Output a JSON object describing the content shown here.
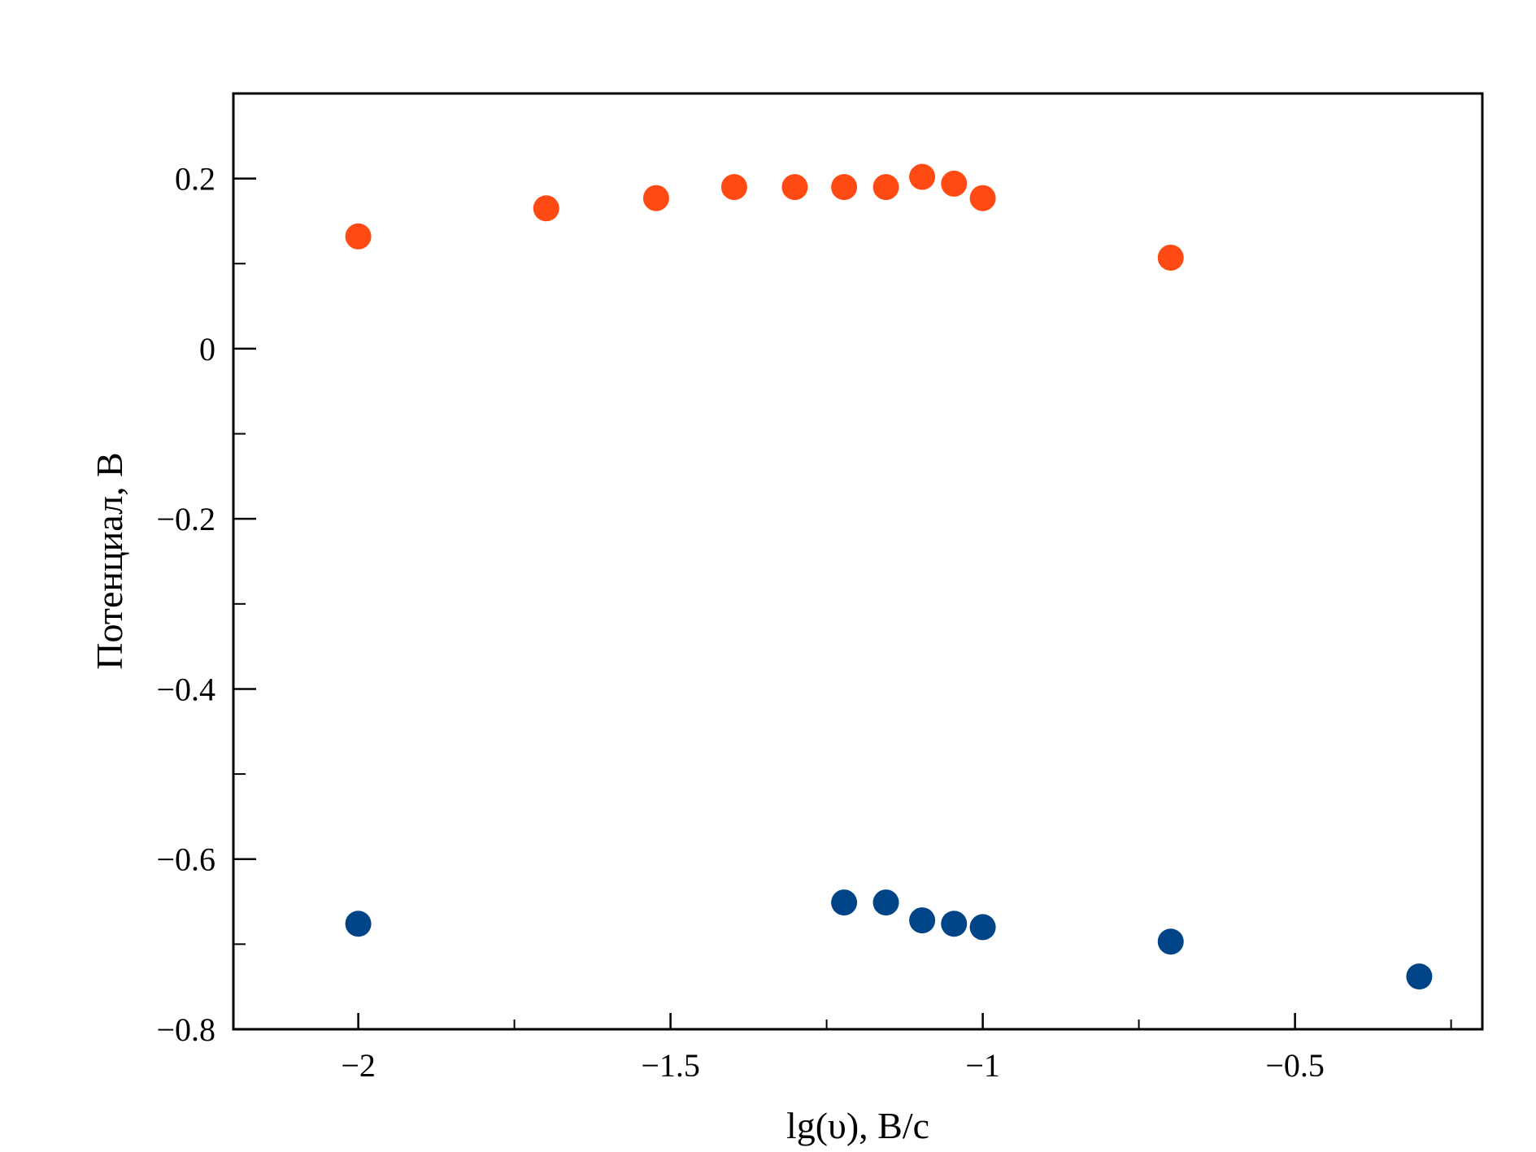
{
  "chart_data": {
    "type": "scatter",
    "title": "",
    "xlabel": "lg(υ), В/с",
    "ylabel": "Потенциал, В",
    "xlim": [
      -2.2,
      -0.2
    ],
    "ylim": [
      -0.8,
      0.3
    ],
    "grid": false,
    "legend": "none",
    "x_ticks": [
      -2,
      -1.5,
      -1,
      -0.5
    ],
    "x_tick_labels": [
      "−2",
      "−1.5",
      "−1",
      "−0.5"
    ],
    "x_minor_ticks": [
      -1.75,
      -1.25,
      -0.75,
      -0.25
    ],
    "y_ticks": [
      0.2,
      0,
      -0.2,
      -0.4,
      -0.6,
      -0.8
    ],
    "y_tick_labels": [
      "0.2",
      "0",
      "−0.2",
      "−0.4",
      "−0.6",
      "−0.8"
    ],
    "y_minor_ticks": [
      0.1,
      -0.1,
      -0.3,
      -0.5,
      -0.7
    ],
    "series": [
      {
        "color": "#ff4a14",
        "points": [
          {
            "x": -2.0,
            "y": 0.132
          },
          {
            "x": -1.699,
            "y": 0.165
          },
          {
            "x": -1.523,
            "y": 0.177
          },
          {
            "x": -1.398,
            "y": 0.19
          },
          {
            "x": -1.301,
            "y": 0.19
          },
          {
            "x": -1.222,
            "y": 0.19
          },
          {
            "x": -1.155,
            "y": 0.19
          },
          {
            "x": -1.097,
            "y": 0.202
          },
          {
            "x": -1.046,
            "y": 0.194
          },
          {
            "x": -1.0,
            "y": 0.177
          },
          {
            "x": -0.699,
            "y": 0.107
          }
        ]
      },
      {
        "color": "#004488",
        "points": [
          {
            "x": -2.0,
            "y": -0.676
          },
          {
            "x": -1.222,
            "y": -0.651
          },
          {
            "x": -1.155,
            "y": -0.651
          },
          {
            "x": -1.097,
            "y": -0.672
          },
          {
            "x": -1.046,
            "y": -0.676
          },
          {
            "x": -1.0,
            "y": -0.68
          },
          {
            "x": -0.699,
            "y": -0.697
          },
          {
            "x": -0.301,
            "y": -0.738
          }
        ]
      }
    ]
  }
}
